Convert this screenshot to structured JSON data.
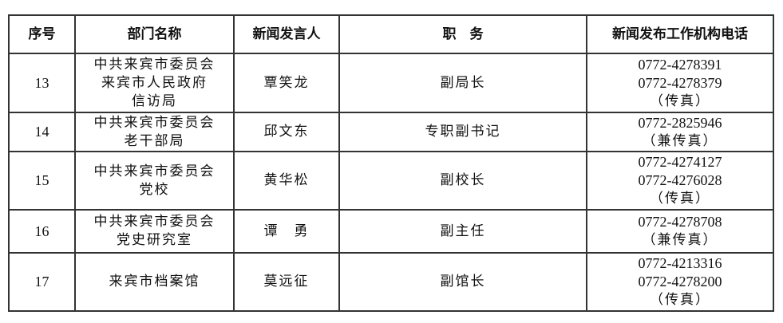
{
  "headers": [
    "序号",
    "部门名称",
    "新闻发言人",
    "职　务",
    "新闻发布工作机构电话"
  ],
  "rows": [
    {
      "no": "13",
      "dept": [
        "中共来宾市委员会",
        "来宾市人民政府",
        "信访局"
      ],
      "spokesperson": "覃笑龙",
      "title": "副局长",
      "phone": [
        "0772-4278391",
        "0772-4278379",
        "（传真）"
      ]
    },
    {
      "no": "14",
      "dept": [
        "中共来宾市委员会",
        "老干部局"
      ],
      "spokesperson": "邱文东",
      "title": "专职副书记",
      "phone": [
        "0772-2825946",
        "（兼传真）"
      ]
    },
    {
      "no": "15",
      "dept": [
        "中共来宾市委员会",
        "党校"
      ],
      "spokesperson": "黄华松",
      "title": "副校长",
      "phone": [
        "0772-4274127",
        "0772-4276028",
        "（传真）"
      ]
    },
    {
      "no": "16",
      "dept": [
        "中共来宾市委员会",
        "党史研究室"
      ],
      "spokesperson": "谭　勇",
      "title": "副主任",
      "phone": [
        "0772-4278708",
        "（兼传真）"
      ]
    },
    {
      "no": "17",
      "dept": [
        "来宾市档案馆"
      ],
      "spokesperson": "莫远征",
      "title": "副馆长",
      "phone": [
        "0772-4213316",
        "0772-4278200",
        "（传真）"
      ]
    }
  ]
}
